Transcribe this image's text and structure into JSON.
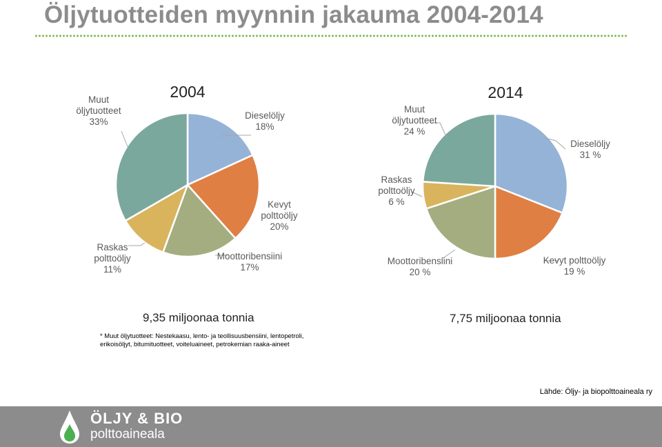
{
  "title": "Öljytuotteiden myynnin jakauma 2004-2014",
  "chart_data": [
    {
      "type": "pie",
      "title": "2004",
      "total_label": "9,35 miljoonaa tonnia",
      "slices": [
        {
          "label": [
            "Dieselöljy",
            "18%"
          ],
          "value": 18,
          "color": "#95b3d7"
        },
        {
          "label": [
            "Kevyt",
            "polttoöljy",
            "20%"
          ],
          "value": 20,
          "color": "#e07f43"
        },
        {
          "label": [
            "Moottoribensiini",
            "17%"
          ],
          "value": 17,
          "color": "#a3ad80"
        },
        {
          "label": [
            "Raskas",
            "polttoöljy",
            "11%"
          ],
          "value": 11,
          "color": "#d9b45d"
        },
        {
          "label": [
            "Muut",
            "öljytuotteet",
            "33%"
          ],
          "value": 33,
          "color": "#7ba89d"
        }
      ]
    },
    {
      "type": "pie",
      "title": "2014",
      "total_label": "7,75 miljoonaa tonnia",
      "slices": [
        {
          "label": [
            "Dieselöljy",
            "31 %"
          ],
          "value": 31,
          "color": "#95b3d7"
        },
        {
          "label": [
            "Kevyt polttoöljy",
            "19 %"
          ],
          "value": 19,
          "color": "#e07f43"
        },
        {
          "label": [
            "Moottoribensiini",
            "20 %"
          ],
          "value": 20,
          "color": "#a3ad80"
        },
        {
          "label": [
            "Raskas",
            "polttoöljy",
            "6 %"
          ],
          "value": 6,
          "color": "#d9b45d"
        },
        {
          "label": [
            "Muut",
            "öljytuotteet",
            "24 %"
          ],
          "value": 24,
          "color": "#7ba89d"
        }
      ]
    }
  ],
  "footnote": [
    "* Muut öljytuotteet: Nestekaasu, lento- ja teollisuusbensiini, lentopetroli,",
    "erikoisöljyt, bitumituotteet, voiteluaineet, petrokemian raaka-aineet"
  ],
  "source": "Lähde: Öljy- ja biopolttoaineala ry",
  "logo": {
    "brand": "ÖLJY & BIO",
    "sub": "polttoaineala"
  }
}
